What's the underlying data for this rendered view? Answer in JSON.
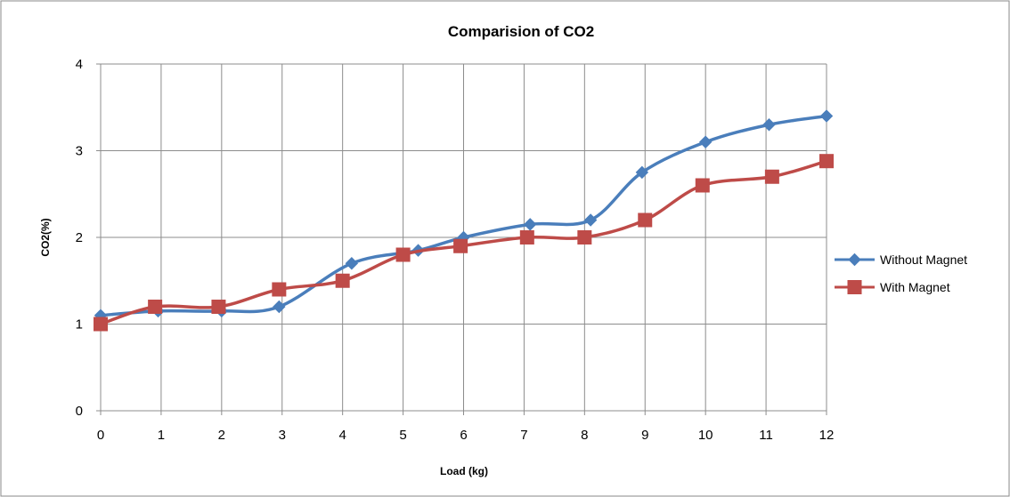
{
  "chart_data": {
    "type": "line",
    "title": "Comparision of CO2",
    "xlabel": "Load (kg)",
    "ylabel": "CO2(%)",
    "categories": [
      "0",
      "1",
      "2",
      "3",
      "4",
      "5",
      "6",
      "7",
      "8",
      "9",
      "10",
      "11",
      "12"
    ],
    "yticks": [
      "0",
      "1",
      "2",
      "3",
      "4"
    ],
    "ylim": [
      0,
      4
    ],
    "grid": true,
    "legend_position": "right",
    "smooth": true,
    "series": [
      {
        "name": "Without Magnet",
        "color": "#4a7ebb",
        "marker": "diamond",
        "points": [
          {
            "x": 0,
            "y": 1.1
          },
          {
            "x": 0.95,
            "y": 1.15
          },
          {
            "x": 2,
            "y": 1.15
          },
          {
            "x": 2.95,
            "y": 1.2
          },
          {
            "x": 4.15,
            "y": 1.7
          },
          {
            "x": 5.25,
            "y": 1.85
          },
          {
            "x": 6,
            "y": 2.0
          },
          {
            "x": 7.1,
            "y": 2.15
          },
          {
            "x": 8.1,
            "y": 2.2
          },
          {
            "x": 8.95,
            "y": 2.75
          },
          {
            "x": 10,
            "y": 3.1
          },
          {
            "x": 11.05,
            "y": 3.3
          },
          {
            "x": 12,
            "y": 3.4
          }
        ]
      },
      {
        "name": "With Magnet",
        "color": "#be4b48",
        "marker": "square",
        "points": [
          {
            "x": 0,
            "y": 1.0
          },
          {
            "x": 0.9,
            "y": 1.2
          },
          {
            "x": 1.95,
            "y": 1.2
          },
          {
            "x": 2.95,
            "y": 1.4
          },
          {
            "x": 4.0,
            "y": 1.5
          },
          {
            "x": 5.0,
            "y": 1.8
          },
          {
            "x": 5.95,
            "y": 1.9
          },
          {
            "x": 7.05,
            "y": 2.0
          },
          {
            "x": 8.0,
            "y": 2.0
          },
          {
            "x": 9.0,
            "y": 2.2
          },
          {
            "x": 9.95,
            "y": 2.6
          },
          {
            "x": 11.1,
            "y": 2.7
          },
          {
            "x": 12,
            "y": 2.88
          }
        ]
      }
    ]
  }
}
